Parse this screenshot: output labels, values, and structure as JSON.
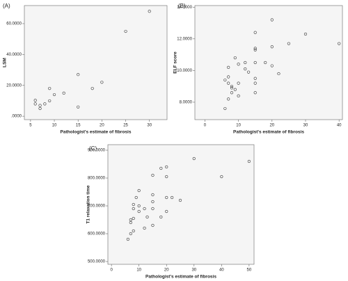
{
  "chart_data": [
    {
      "type": "scatter",
      "panel_label": "(A)",
      "x_label": "Pathologist's estimate of fibrosis",
      "y_label": "LSM",
      "color": "#333333",
      "background": "#f5f5f5",
      "x": [
        6,
        6,
        7,
        7,
        8,
        9,
        9,
        10,
        12,
        15,
        15,
        18,
        20,
        25,
        30
      ],
      "values": [
        10.3,
        8,
        5,
        7,
        8,
        10,
        18,
        14,
        15,
        27,
        6,
        18,
        22,
        55,
        68
      ],
      "xlim": [
        3.7,
        33.7
      ],
      "xticks": [
        5,
        10,
        15,
        20,
        25,
        30
      ],
      "ylim": [
        -2.2,
        71.7
      ],
      "yticks": [
        {
          "value": 0,
          "label": ".0000"
        },
        {
          "value": 20,
          "label": "20.0000"
        },
        {
          "value": 40,
          "label": "40.0000"
        },
        {
          "value": 60,
          "label": "60.0000"
        }
      ]
    },
    {
      "type": "scatter",
      "panel_label": "(B)",
      "x_label": "Pathologist's estimate of fibrosis",
      "y_label": "ELF score",
      "color": "#333333",
      "background": "#f5f5f5",
      "x": [
        6,
        7,
        7,
        6,
        7,
        7,
        8,
        8,
        8,
        9,
        9,
        10,
        10,
        10,
        12,
        12,
        13,
        15,
        15,
        15,
        15,
        15,
        15,
        15,
        18,
        20,
        20,
        20,
        22,
        25,
        30,
        40
      ],
      "values": [
        7.6,
        8.2,
        9.2,
        9.4,
        9.6,
        10.2,
        8.6,
        8.9,
        9.0,
        8.8,
        10.8,
        8.4,
        9.2,
        10.4,
        10.1,
        10.5,
        9.9,
        8.6,
        9.2,
        9.5,
        10.5,
        11.3,
        11.4,
        12.4,
        10.5,
        10.3,
        11.5,
        13.2,
        9.8,
        11.7,
        12.3,
        11.7
      ],
      "xlim": [
        -3,
        41
      ],
      "xticks": [
        0,
        10,
        20,
        30,
        40
      ],
      "ylim": [
        6.9,
        14.1
      ],
      "yticks": [
        {
          "value": 8,
          "label": "8.0000"
        },
        {
          "value": 10,
          "label": "10.0000"
        },
        {
          "value": 12,
          "label": "12.0000"
        },
        {
          "value": 14,
          "label": "14.0000"
        }
      ]
    },
    {
      "type": "scatter",
      "panel_label": "(C)",
      "x_label": "Pathologist's estimate of fibrosis",
      "y_label": "T1 relaxation time",
      "color": "#333333",
      "background": "#f5f5f5",
      "x": [
        6,
        7,
        7,
        7,
        8,
        8,
        8,
        8,
        9,
        10,
        10,
        10,
        12,
        12,
        13,
        15,
        15,
        15,
        15,
        15,
        18,
        18,
        20,
        20,
        20,
        20,
        22,
        25,
        30,
        40,
        50
      ],
      "values": [
        580,
        600,
        640,
        650,
        610,
        655,
        690,
        705,
        730,
        700,
        755,
        680,
        620,
        690,
        660,
        630,
        690,
        715,
        740,
        810,
        835,
        660,
        840,
        805,
        730,
        680,
        730,
        720,
        870,
        805,
        860
      ],
      "xlim": [
        -1.3,
        51.8
      ],
      "xticks": [
        0,
        10,
        20,
        30,
        40,
        50
      ],
      "ylim": [
        490,
        920
      ],
      "yticks": [
        {
          "value": 500,
          "label": "500.0000"
        },
        {
          "value": 600,
          "label": "600.0000"
        },
        {
          "value": 700,
          "label": "700.0000"
        },
        {
          "value": 800,
          "label": "800.0000"
        },
        {
          "value": 900,
          "label": "900.0000"
        }
      ]
    }
  ]
}
